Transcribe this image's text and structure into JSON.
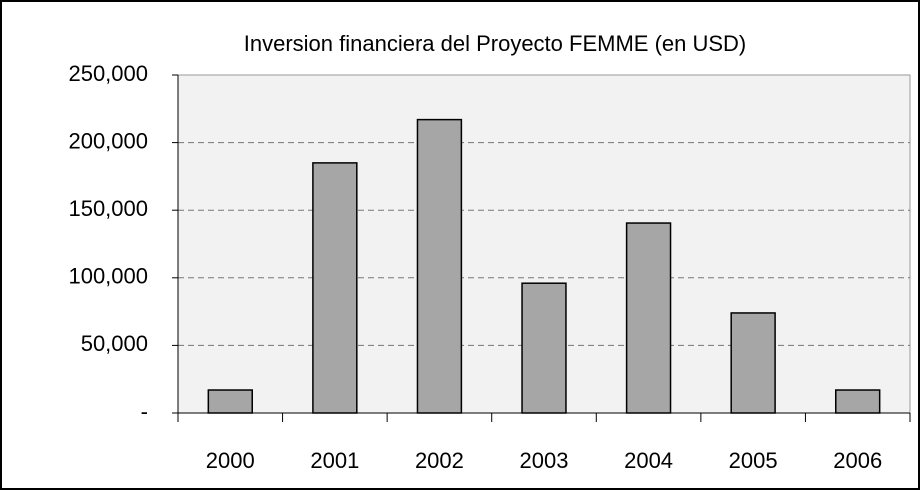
{
  "chart_data": {
    "type": "bar",
    "title": "Inversion financiera del Proyecto FEMME (en USD)",
    "categories": [
      "2000",
      "2001",
      "2002",
      "2003",
      "2004",
      "2005",
      "2006"
    ],
    "values": [
      17000,
      185000,
      217000,
      96000,
      140500,
      74000,
      17000
    ],
    "color": "#a6a6a6",
    "ylim": [
      0,
      250000
    ],
    "yticks": [
      {
        "value": 0,
        "label": "-"
      },
      {
        "value": 50000,
        "label": "50,000"
      },
      {
        "value": 100000,
        "label": "100,000"
      },
      {
        "value": 150000,
        "label": "150,000"
      },
      {
        "value": 200000,
        "label": "200,000"
      },
      {
        "value": 250000,
        "label": "250,000"
      }
    ],
    "grid": true
  }
}
